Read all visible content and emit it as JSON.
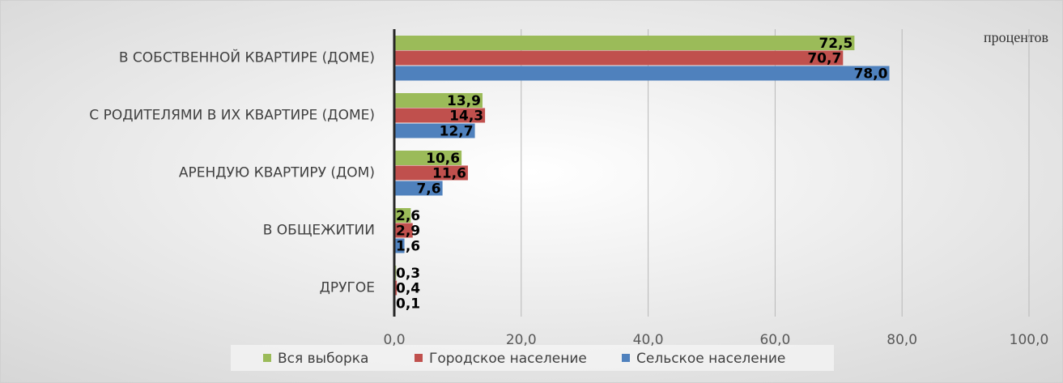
{
  "chart_data": {
    "type": "bar",
    "orientation": "horizontal",
    "annotation": "процентов",
    "categories": [
      "В СОБСТВЕННОЙ КВАРТИРЕ (ДОМЕ)",
      "С РОДИТЕЛЯМИ В ИХ КВАРТИРЕ (ДОМЕ)",
      "АРЕНДУЮ КВАРТИРУ (ДОМ)",
      "В ОБЩЕЖИТИИ",
      "ДРУГОЕ"
    ],
    "series": [
      {
        "name": "Вся выборка",
        "color": "#9bbb59",
        "values": [
          72.5,
          13.9,
          10.6,
          2.6,
          0.3
        ],
        "value_labels": [
          "72,5",
          "13,9",
          "10,6",
          "2,6",
          "0,3"
        ]
      },
      {
        "name": "Городское население",
        "color": "#c0504d",
        "values": [
          70.7,
          14.3,
          11.6,
          2.9,
          0.4
        ],
        "value_labels": [
          "70,7",
          "14,3",
          "11,6",
          "2,9",
          "0,4"
        ]
      },
      {
        "name": "Сельское население",
        "color": "#4f81bd",
        "values": [
          78.0,
          12.7,
          7.6,
          1.6,
          0.1
        ],
        "value_labels": [
          "78,0",
          "12,7",
          "7,6",
          "1,6",
          "0,1"
        ]
      }
    ],
    "xlim": [
      0,
      100
    ],
    "xticks": [
      {
        "value": 0,
        "label": "0,0"
      },
      {
        "value": 20,
        "label": "20,0"
      },
      {
        "value": 40,
        "label": "40,0"
      },
      {
        "value": 60,
        "label": "60,0"
      },
      {
        "value": 80,
        "label": "80,0"
      },
      {
        "value": 100,
        "label": "100,0"
      }
    ],
    "grid": true,
    "legend": "bottom"
  }
}
